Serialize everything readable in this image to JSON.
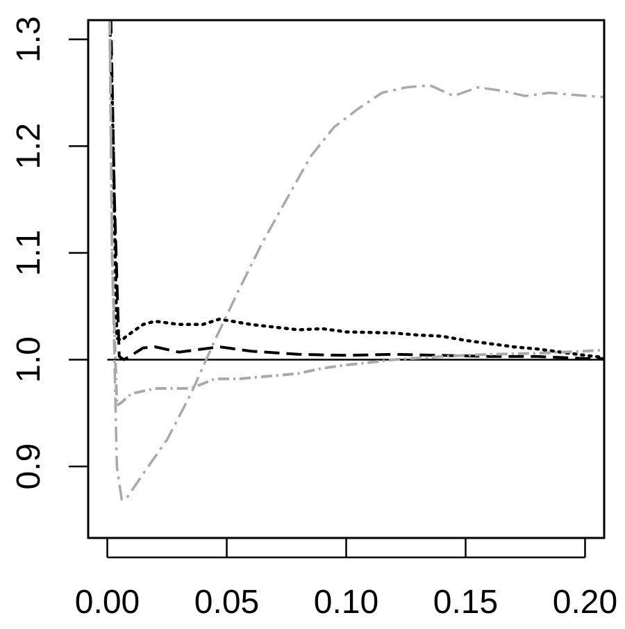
{
  "chart_data": {
    "type": "line",
    "title": "",
    "xlabel": "",
    "ylabel": "",
    "xlim": [
      -0.008,
      0.208
    ],
    "ylim": [
      0.833,
      1.318
    ],
    "x_ticks": [
      0.0,
      0.05,
      0.1,
      0.15,
      0.2
    ],
    "x_tick_labels": [
      "0.00",
      "0.05",
      "0.10",
      "0.15",
      "0.20"
    ],
    "y_ticks": [
      0.9,
      1.0,
      1.1,
      1.2,
      1.3
    ],
    "y_tick_labels": [
      "0.9",
      "1.0",
      "1.1",
      "1.2",
      "1.3"
    ],
    "grid": false,
    "legend": false,
    "reference_line": {
      "y": 1.0,
      "x_range": [
        0.0,
        0.208
      ],
      "color": "#000000",
      "style": "solid"
    },
    "series": [
      {
        "color": "#000000",
        "style": "dotted",
        "x": [
          0.001,
          0.002,
          0.004,
          0.006,
          0.008,
          0.015,
          0.02,
          0.03,
          0.04,
          0.047,
          0.06,
          0.08,
          0.09,
          0.1,
          0.12,
          0.13,
          0.14,
          0.15,
          0.17,
          0.18,
          0.19,
          0.2,
          0.208
        ],
        "y": [
          1.32,
          1.25,
          1.02,
          1.018,
          1.022,
          1.033,
          1.036,
          1.033,
          1.033,
          1.038,
          1.033,
          1.028,
          1.029,
          1.026,
          1.025,
          1.023,
          1.022,
          1.018,
          1.012,
          1.01,
          1.007,
          1.004,
          1.002
        ]
      },
      {
        "color": "#000000",
        "style": "dashed",
        "x": [
          0.0015,
          0.003,
          0.005,
          0.007,
          0.01,
          0.015,
          0.02,
          0.03,
          0.04,
          0.047,
          0.06,
          0.08,
          0.1,
          0.12,
          0.14,
          0.16,
          0.18,
          0.19,
          0.2,
          0.208
        ],
        "y": [
          1.32,
          1.15,
          1.003,
          1.0,
          1.004,
          1.011,
          1.012,
          1.007,
          1.01,
          1.012,
          1.008,
          1.005,
          1.004,
          1.005,
          1.004,
          1.003,
          1.003,
          1.002,
          1.001,
          1.001
        ]
      },
      {
        "color": "#a9a9a9",
        "style": "dashed",
        "x": [
          0.001,
          0.002,
          0.004,
          0.006,
          0.01,
          0.02,
          0.035,
          0.045,
          0.055,
          0.07,
          0.08,
          0.09,
          0.1,
          0.12,
          0.14,
          0.16,
          0.18,
          0.2,
          0.208
        ],
        "y": [
          1.32,
          1.1,
          0.957,
          0.96,
          0.968,
          0.973,
          0.973,
          0.982,
          0.982,
          0.985,
          0.987,
          0.992,
          0.995,
          1.0,
          1.003,
          1.005,
          1.006,
          1.008,
          1.009
        ],
        "dash": "16 6 3 6"
      },
      {
        "color": "#a9a9a9",
        "style": "dashdot",
        "x": [
          0.001,
          0.002,
          0.004,
          0.006,
          0.008,
          0.015,
          0.025,
          0.035,
          0.045,
          0.055,
          0.065,
          0.075,
          0.085,
          0.095,
          0.105,
          0.115,
          0.125,
          0.135,
          0.145,
          0.155,
          0.165,
          0.175,
          0.185,
          0.195,
          0.208
        ],
        "y": [
          1.32,
          1.1,
          0.9,
          0.869,
          0.87,
          0.893,
          0.925,
          0.968,
          1.018,
          1.065,
          1.11,
          1.15,
          1.19,
          1.218,
          1.235,
          1.25,
          1.255,
          1.257,
          1.247,
          1.255,
          1.252,
          1.247,
          1.25,
          1.248,
          1.246
        ]
      }
    ]
  }
}
